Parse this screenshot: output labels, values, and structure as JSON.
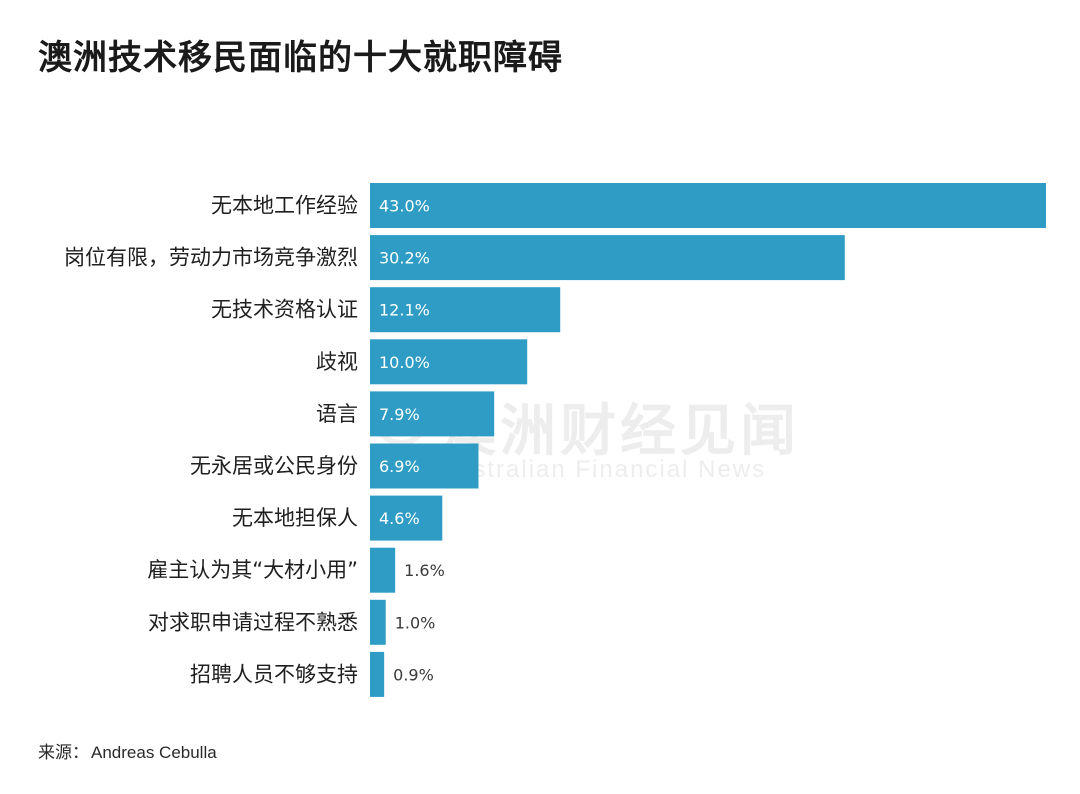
{
  "title": "澳洲技术移民面临的十大就职障碍",
  "source": {
    "label": "来源：",
    "value": "Andreas Cebulla"
  },
  "watermark": {
    "cn": "澳洲财经见闻",
    "en": "Australian Financial News"
  },
  "colors": {
    "bar": "#2e9cc4",
    "label_inside": "#ffffff",
    "label_outside": "#3a3a3a"
  },
  "chart_data": {
    "type": "bar",
    "orientation": "horizontal",
    "title": "澳洲技术移民面临的十大就职障碍",
    "xlabel": "",
    "ylabel": "",
    "xlim": [
      0,
      43.0
    ],
    "grid": false,
    "legend": "none",
    "categories": [
      "无本地工作经验",
      "岗位有限，劳动力市场竞争激烈",
      "无技术资格认证",
      "歧视",
      "语言",
      "无永居或公民身份",
      "无本地担保人",
      "雇主认为其“大材小用”",
      "对求职申请过程不熟悉",
      "招聘人员不够支持"
    ],
    "values": [
      43.0,
      30.2,
      12.1,
      10.0,
      7.9,
      6.9,
      4.6,
      1.6,
      1.0,
      0.9
    ],
    "value_labels": [
      "43.0%",
      "30.2%",
      "12.1%",
      "10.0%",
      "7.9%",
      "6.9%",
      "4.6%",
      "1.6%",
      "1.0%",
      "0.9%"
    ]
  }
}
